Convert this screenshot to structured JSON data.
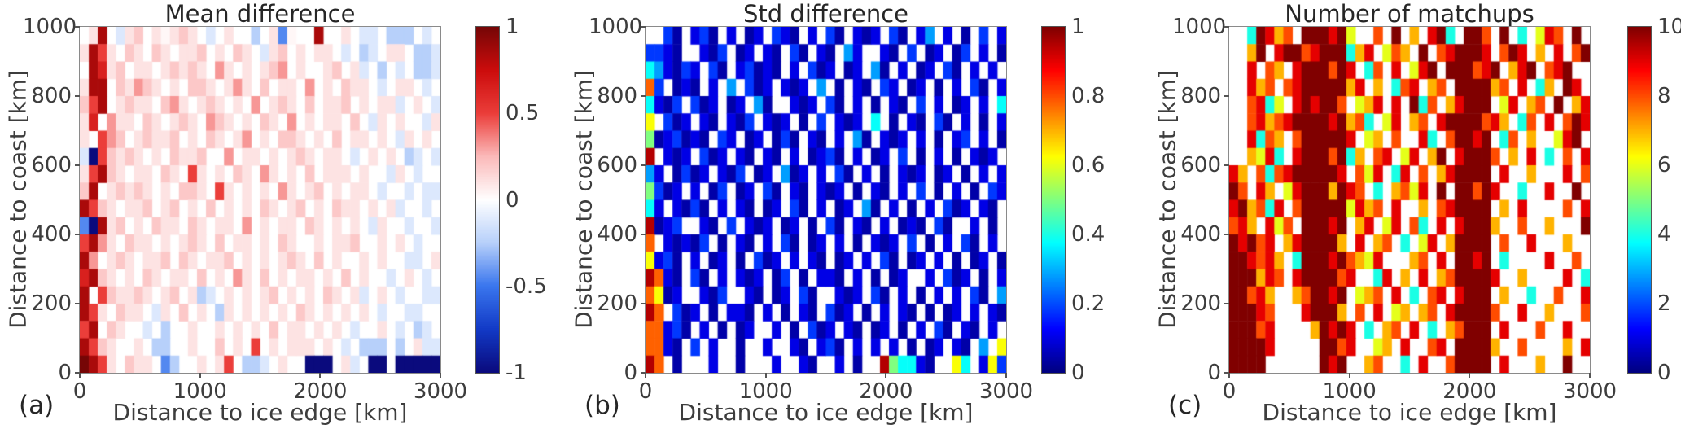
{
  "figure": {
    "background": "#ffffff",
    "text_color": "#3d3d3d",
    "axis_box_color": "#8a8a8a",
    "panel_letters": [
      "(a)",
      "(b)",
      "(c)"
    ]
  },
  "chart_data": [
    {
      "type": "heatmap",
      "panel_label": "(a)",
      "title": "Mean difference",
      "xlabel": "Distance to ice edge [km]",
      "ylabel": "Distance to coast [km]",
      "x_range": [
        0,
        3000
      ],
      "y_range": [
        0,
        1000
      ],
      "x_ticks": [
        "0",
        "1000",
        "2000",
        "3000"
      ],
      "y_ticks": [
        "1000",
        "800",
        "600",
        "400",
        "200",
        "0"
      ],
      "nx": 40,
      "ny": 20,
      "cell_size_km": [
        75,
        50
      ],
      "colormap": "bluewhitered",
      "clim": [
        -1,
        1
      ],
      "colorbar_ticks": [
        "1",
        "0.5",
        "0",
        "-0.5",
        "-1"
      ],
      "no_data_char": ".",
      "value_levels": {
        "A": -1,
        "B": -0.7,
        "C": -0.45,
        "D": -0.25,
        "E": -0.12,
        "0": 0.03,
        "F": 0.1,
        "G": 0.2,
        "H": 0.32,
        "I": 0.5,
        "J": 0.65,
        "K": 0.85,
        "L": 1
      },
      "grid_rows_top_to_bottom": [
        ".FK.EFG.F0FGF.E.F..D.FC0..K..F.EE.DDD.E.",
        "FKIF.GF.GF.FFG.F.GF.EFG.F.FF.E.DE.FF.DDE",
        ".KJFG.FF.FGFGF.HF.F.FGH.F..FG.FE.D.E.DDE",
        "FKK.GFHGF.F.GGF.FHF.G.FF.H.F.GFF.E.FF.E.",
        "GIK.FGFF.GHF.FGF.F.H.FGF.G.FFG.F.FFE.F.E",
        "FJ.HFF.GF.FGF.HGF.F.GF.H.F.FF.G.EF.F..EF",
        "F.IHG.FGFFG.F.GF.FH.F.GGF.F.G.FF.F.EF.F.",
        "EAIGFGF.F.GFFG..H.FF.F.FGF.FF.E.F.F.DE.E",
        "FIKGF.FF.GF.IF.F.GF.HF.F.G.FFF.F..EF.E..",
        "GK.FGFGF.F.GGF.IF.F.F.HF.FG.F.FF.E..E.EE",
        "KIGF.FFG.FG.F.G.F.F.GF.FG.F.GFF.F.FE..E.",
        "CAKFG.F.GFF.GF.FF.H.F.FF.GF.F.F.EF..E..E",
        "IKHF.GFF.F.FGF.G.FF.F.GF..F.FFG..F.F.E..",
        "KH.FGF.FFG.GF.FFG.F.F.FGF.G.F..F.F..EE.F",
        "JKGF.F.GF.FF.G.F.HF.G.F.FF.F.G.F..E.F.E.",
        "K.IGFFGF.FG.FDE.F.F.FG.F.F.GF.FE.F.E..EE",
        "KIF.GFF.EF.G.F.DF.F.F.F.GF.F.F.F.E..EE..",
        "IK.GF..E.D..F..F.F.F.G.FF.F.F.E..F.E.DE.",
        "KIGF..F.DD..F..G.F.I.F.FFF.F.E.DDD.D.FEE",
        "LKIF.GFF.CD..F.FI.DDE.F..AAA.FE.AA.AAAAA"
      ]
    },
    {
      "type": "heatmap",
      "panel_label": "(b)",
      "title": "Std difference",
      "xlabel": "Distance to ice edge [km]",
      "ylabel": "Distance to coast [km]",
      "x_range": [
        0,
        3000
      ],
      "y_range": [
        0,
        1000
      ],
      "x_ticks": [
        "0",
        "1000",
        "2000",
        "3000"
      ],
      "y_ticks": [
        "1000",
        "800",
        "600",
        "400",
        "200",
        "0"
      ],
      "nx": 40,
      "ny": 20,
      "cell_size_km": [
        75,
        50
      ],
      "colormap": "jet",
      "clim": [
        0,
        1
      ],
      "colorbar_ticks": [
        "1",
        "0.8",
        "0.6",
        "0.4",
        "0.2",
        "0"
      ],
      "no_data_char": ".",
      "value_levels": {
        "1": 0.04,
        "2": 0.1,
        "3": 0.18,
        "4": 0.28,
        "5": 0.38,
        "6": 0.5,
        "7": 0.62,
        "8": 0.78,
        "9": 0.95
      },
      "grid_rows_top_to_bottom": [
        "..31.231.2.12.321.2.31.212.31.24.2.1.3.2",
        "3321..213.12.21.31.21.42..21.3.12.13.2.1",
        "542132.31.23121.2.312.12.41.2.12.31.2.2.",
        "83.121.2.4.312.212.4.1.21.32.12.1.2.31.2",
        "5213.312.12.41..212.31.2.1.21.3.2.12.2.5",
        "7.312.21.213.212.1.3.212.5.1.21.31.2.1.2",
        "6123121.32.12.131.21.2.41.212.2.1.23.2.1",
        "9.212.312.21.21.2.1231.2.12.3.1.2.1.212.",
        "42.1312.213.12.412.2.31.2.1.212.12.1.2.2",
        "6312.2.13.12.31.21.212.1.21.2.3.1.2.1.32",
        "52.2131.2.21.12.31.2.12.41.2.1.2.312.21.",
        "9123..21.3.212.12.1.31.21.2.121.31..2.1.",
        "8.21213.1.21.2.31.12.2.1.212.3.1.2.31.2.",
        "7231.2.12.1.312.2.21.12.2.31.12.2.1.12.1",
        "9821.31.2.212.13.1.221.2.1.12..2.312.1.2",
        "8712..213..21.12.31..212.31.2.1.2.2.31.4",
        "98.312.1.221.2.1.21.312.1.2.21.1.12.2.21",
        "88231.2.1.12..2.1.312.21.12.1.2.31.21.2.",
        "8821.3.2..1..2..21.231.2.2.2.1.12.21.4.7",
        "98.1...2..1...2..21..2.1..965521..75.273"
      ]
    },
    {
      "type": "heatmap",
      "panel_label": "(c)",
      "title": "Number of matchups",
      "xlabel": "Distance to ice edge [km]",
      "ylabel": "Distance to coast [km]",
      "x_range": [
        0,
        3000
      ],
      "y_range": [
        0,
        1000
      ],
      "x_ticks": [
        "0",
        "1000",
        "2000",
        "3000"
      ],
      "y_ticks": [
        "1000",
        "800",
        "600",
        "400",
        "200",
        "0"
      ],
      "nx": 40,
      "ny": 20,
      "cell_size_km": [
        75,
        50
      ],
      "colormap": "jet",
      "clim": [
        0,
        10
      ],
      "colorbar_ticks": [
        "10",
        "8",
        "6",
        "4",
        "2",
        "0"
      ],
      "no_data_char": ".",
      "value_levels": {
        "0": 0,
        "1": 1,
        "2": 2,
        "3": 3,
        "4": 4,
        "5": 5,
        "6": 6,
        "7": 7,
        "8": 8,
        "9": 9,
        "X": 10
      },
      "grid_rows_top_to_bottom": [
        "..4X978.XXX9X6..8.X.7.9X4.XX8.X.4.698.X.",
        "..7X.9XX89XXX479.687.X.89XXX9.8X9.7.9.8X",
        "..9.87.9XXX8X9.48.9.69X.XXX89X.79X.89X..",
        "..978.89XXXXX79.7.489.78.XXXX78.9.47.X9.",
        "..8946.9X9XX8.679.9.X48.79XXX.69.78.X.79",
        "..89789XXXX9X784.69.78.9XXXX897.48.9.8X9",
        "..9487.8XXXXX9.67.8..94.8XX9X.48.7..69X.",
        "..7694.9XXX8X47.89.69.7X.9XXX8.7.9.4.8.9",
        "97.8489XXXXX9.869.49.8.79XXXX.9..7...9.8",
        "X8.97.69XXX7X98.4.7869.X.XX8X9..4..9..X.",
        "9X7849.8XXXXX6978.9..7.89XXXX.7.9....8.9",
        "897.968.XXX9X.79.69.84.9.9XXX7..8..7...X",
        "X9X89.79XXXX7.9.78.4.69.7XXXX.8..9...7..",
        "XX9897.4XXX9X8769...78.9.XX9X.4....9..8.",
        "XXX798.9XXXX89..49.7.9.78XXXX9..7....9.4",
        "XX897..78XX9X.678.9.4.89.9XXX.7..4..8..9",
        "XXX98...9XXX7.8.9.67.78.9XXXX8..9..7...8",
        "XXX89....7X9X9.4.78.9.4.78XXX.9...8..9..",
        "XXXX9.....XX89..67.9..89.XXXX7..8....7.9",
        "XXXX......X9X..78..4.9..8XXXX.9...7..X.."
      ]
    }
  ]
}
